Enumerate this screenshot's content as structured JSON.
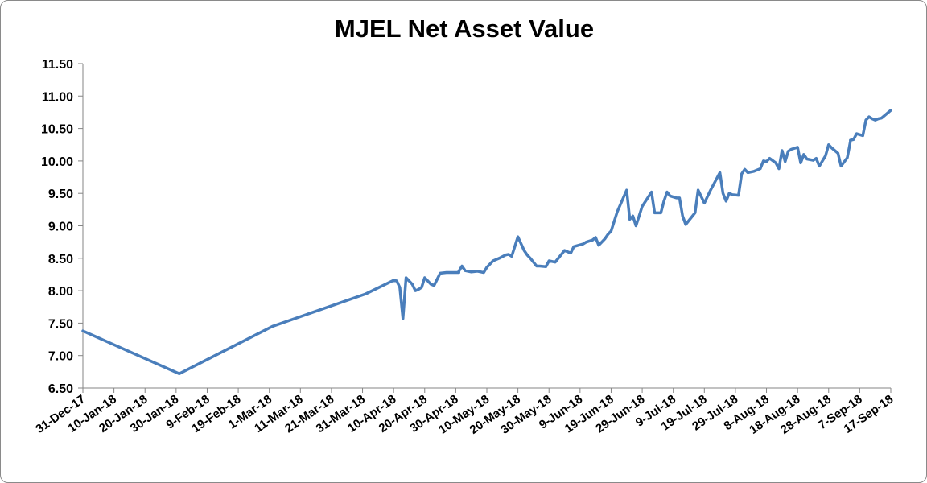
{
  "chart_data": {
    "type": "line",
    "title": "MJEL Net Asset Value",
    "xlabel": "",
    "ylabel": "",
    "ylim": [
      6.5,
      11.5
    ],
    "y_ticks": [
      "6.50",
      "7.00",
      "7.50",
      "8.00",
      "8.50",
      "9.00",
      "9.50",
      "10.00",
      "10.50",
      "11.00",
      "11.50"
    ],
    "x_ticks": [
      "31-Dec-17",
      "10-Jan-18",
      "20-Jan-18",
      "30-Jan-18",
      "9-Feb-18",
      "19-Feb-18",
      "1-Mar-18",
      "11-Mar-18",
      "21-Mar-18",
      "31-Mar-18",
      "10-Apr-18",
      "20-Apr-18",
      "30-Apr-18",
      "10-May-18",
      "20-May-18",
      "30-May-18",
      "9-Jun-18",
      "19-Jun-18",
      "29-Jun-18",
      "9-Jul-18",
      "19-Jul-18",
      "29-Jul-18",
      "8-Aug-18",
      "18-Aug-18",
      "28-Aug-18",
      "7-Sep-18",
      "17-Sep-18"
    ],
    "grid": false,
    "legend": "none",
    "line_color": "#4a7ebb",
    "series": [
      {
        "x": [
          "31-Dec-17",
          "31-Jan-18",
          "2-Mar-18",
          "1-Apr-18",
          "10-Apr-18",
          "11-Apr-18",
          "12-Apr-18",
          "13-Apr-18",
          "14-Apr-18",
          "16-Apr-18",
          "17-Apr-18",
          "18-Apr-18",
          "19-Apr-18",
          "20-Apr-18",
          "22-Apr-18",
          "23-Apr-18",
          "25-Apr-18",
          "27-Apr-18",
          "1-May-18",
          "1-May-18",
          "2-May-18",
          "3-May-18",
          "5-May-18",
          "7-May-18",
          "9-May-18",
          "10-May-18",
          "12-May-18",
          "14-May-18",
          "16-May-18",
          "17-May-18",
          "18-May-18",
          "20-May-18",
          "22-May-18",
          "23-May-18",
          "24-May-18",
          "26-May-18",
          "27-May-18",
          "29-May-18",
          "30-May-18",
          "1-Jun-18",
          "4-Jun-18",
          "6-Jun-18",
          "7-Jun-18",
          "10-Jun-18",
          "11-Jun-18",
          "13-Jun-18",
          "14-Jun-18",
          "15-Jun-18",
          "17-Jun-18",
          "18-Jun-18",
          "19-Jun-18",
          "21-Jun-18",
          "24-Jun-18",
          "25-Jun-18",
          "26-Jun-18",
          "27-Jun-18",
          "29-Jun-18",
          "2-Jul-18",
          "3-Jul-18",
          "5-Jul-18",
          "6-Jul-18",
          "7-Jul-18",
          "8-Jul-18",
          "10-Jul-18",
          "11-Jul-18",
          "12-Jul-18",
          "13-Jul-18",
          "16-Jul-18",
          "17-Jul-18",
          "18-Jul-18",
          "19-Jul-18",
          "21-Jul-18",
          "24-Jul-18",
          "25-Jul-18",
          "26-Jul-18",
          "27-Jul-18",
          "28-Jul-18",
          "30-Jul-18",
          "31-Jul-18",
          "1-Aug-18",
          "2-Aug-18",
          "4-Aug-18",
          "6-Aug-18",
          "7-Aug-18",
          "8-Aug-18",
          "9-Aug-18",
          "11-Aug-18",
          "12-Aug-18",
          "13-Aug-18",
          "14-Aug-18",
          "15-Aug-18",
          "16-Aug-18",
          "18-Aug-18",
          "19-Aug-18",
          "20-Aug-18",
          "21-Aug-18",
          "23-Aug-18",
          "24-Aug-18",
          "25-Aug-18",
          "27-Aug-18",
          "28-Aug-18",
          "29-Aug-18",
          "31-Aug-18",
          "1-Sep-18",
          "3-Sep-18",
          "4-Sep-18",
          "4-Sep-18",
          "5-Sep-18",
          "6-Sep-18",
          "8-Sep-18",
          "9-Sep-18",
          "10-Sep-18",
          "11-Sep-18",
          "12-Sep-18",
          "13-Sep-18",
          "14-Sep-18",
          "15-Sep-18",
          "17-Sep-18"
        ],
        "values": [
          7.38,
          6.72,
          7.45,
          7.95,
          8.16,
          8.15,
          8.05,
          7.57,
          8.2,
          8.1,
          8.0,
          8.02,
          8.05,
          8.2,
          8.1,
          8.08,
          8.27,
          8.28,
          8.28,
          8.3,
          8.38,
          8.31,
          8.29,
          8.3,
          8.28,
          8.36,
          8.46,
          8.5,
          8.55,
          8.56,
          8.53,
          8.83,
          8.62,
          8.55,
          8.5,
          8.38,
          8.38,
          8.37,
          8.46,
          8.44,
          8.62,
          8.58,
          8.68,
          8.72,
          8.75,
          8.78,
          8.82,
          8.7,
          8.8,
          8.87,
          8.92,
          9.22,
          9.55,
          9.1,
          9.15,
          9.0,
          9.3,
          9.52,
          9.2,
          9.2,
          9.38,
          9.52,
          9.46,
          9.43,
          9.43,
          9.15,
          9.02,
          9.2,
          9.55,
          9.45,
          9.35,
          9.55,
          9.82,
          9.5,
          9.38,
          9.5,
          9.48,
          9.47,
          9.8,
          9.87,
          9.82,
          9.84,
          9.88,
          10.0,
          9.99,
          10.04,
          9.97,
          9.88,
          10.16,
          9.99,
          10.15,
          10.18,
          10.21,
          9.97,
          10.1,
          10.03,
          10.01,
          10.04,
          9.92,
          10.08,
          10.25,
          10.2,
          10.12,
          9.92,
          10.05,
          10.3,
          10.32,
          10.33,
          10.42,
          10.39,
          10.63,
          10.68,
          10.65,
          10.63,
          10.65,
          10.66,
          10.7,
          10.78
        ]
      }
    ]
  }
}
